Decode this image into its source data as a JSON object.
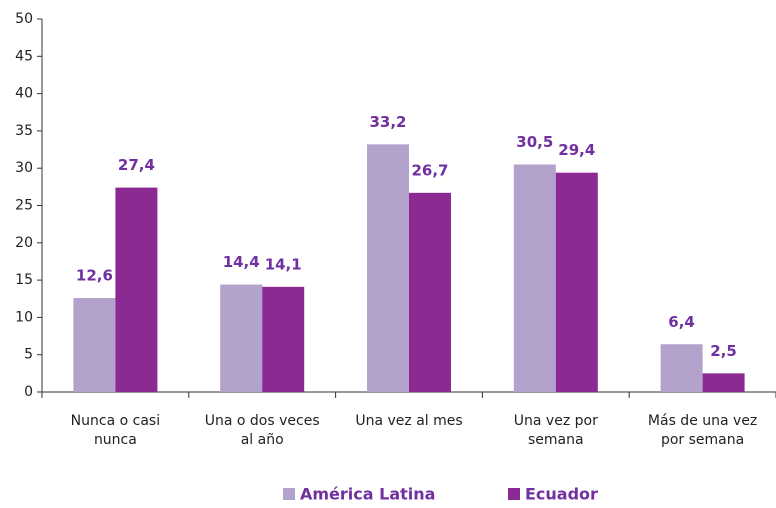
{
  "chart_data": {
    "type": "bar",
    "categories": [
      "Nunca o casi nunca",
      "Una o dos veces al año",
      "Una vez al mes",
      "Una vez por semana",
      "Más de una vez por semana"
    ],
    "series": [
      {
        "name": "América Latina",
        "color": "#b3a2cc",
        "values": [
          12.6,
          14.4,
          33.2,
          30.5,
          6.4
        ],
        "value_labels": [
          "12,6",
          "14,4",
          "33,2",
          "30,5",
          "6,4"
        ]
      },
      {
        "name": "Ecuador",
        "color": "#8a2a92",
        "values": [
          27.4,
          14.1,
          26.7,
          29.4,
          2.5
        ],
        "value_labels": [
          "27,4",
          "14,1",
          "26,7",
          "29,4",
          "2,5"
        ]
      }
    ],
    "ylim": [
      0,
      50
    ],
    "yticks": [
      0,
      5,
      10,
      15,
      20,
      25,
      30,
      35,
      40,
      45,
      50
    ],
    "legend": "bottom"
  }
}
